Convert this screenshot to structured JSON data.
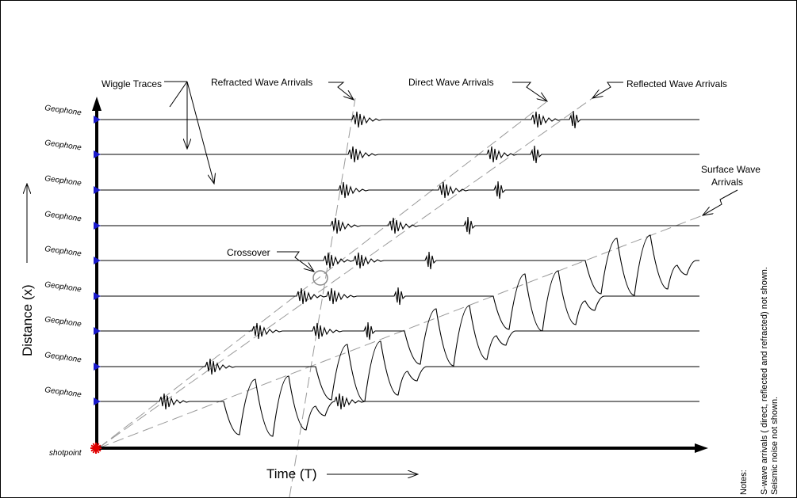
{
  "figure": {
    "geophone_label": "Geophone",
    "geophone_count": 9,
    "shotpoint_label": "shotpoint",
    "x_axis_label": "Time (T)",
    "y_axis_label": "Distance (x)",
    "callouts": {
      "wiggle_traces": "Wiggle Traces",
      "refracted": "Refracted Wave Arrivals",
      "direct": "Direct Wave Arrivals",
      "reflected": "Reflected Wave Arrivals",
      "surface_line1": "Surface Wave",
      "surface_line2": "Arrivals",
      "crossover": "Crossover"
    },
    "notes": {
      "heading": "Notes:",
      "line1": "S-wave arrivals ( direct, reflected and refracted) not shown.",
      "line2": "Seismic noise not shown."
    },
    "colors": {
      "ink": "#000000",
      "geophone_marker": "#1a1acc",
      "shotpoint_marker": "#e00000",
      "guide_line": "#9a9a9a",
      "crossover_circle": "#8a8a8a"
    }
  }
}
